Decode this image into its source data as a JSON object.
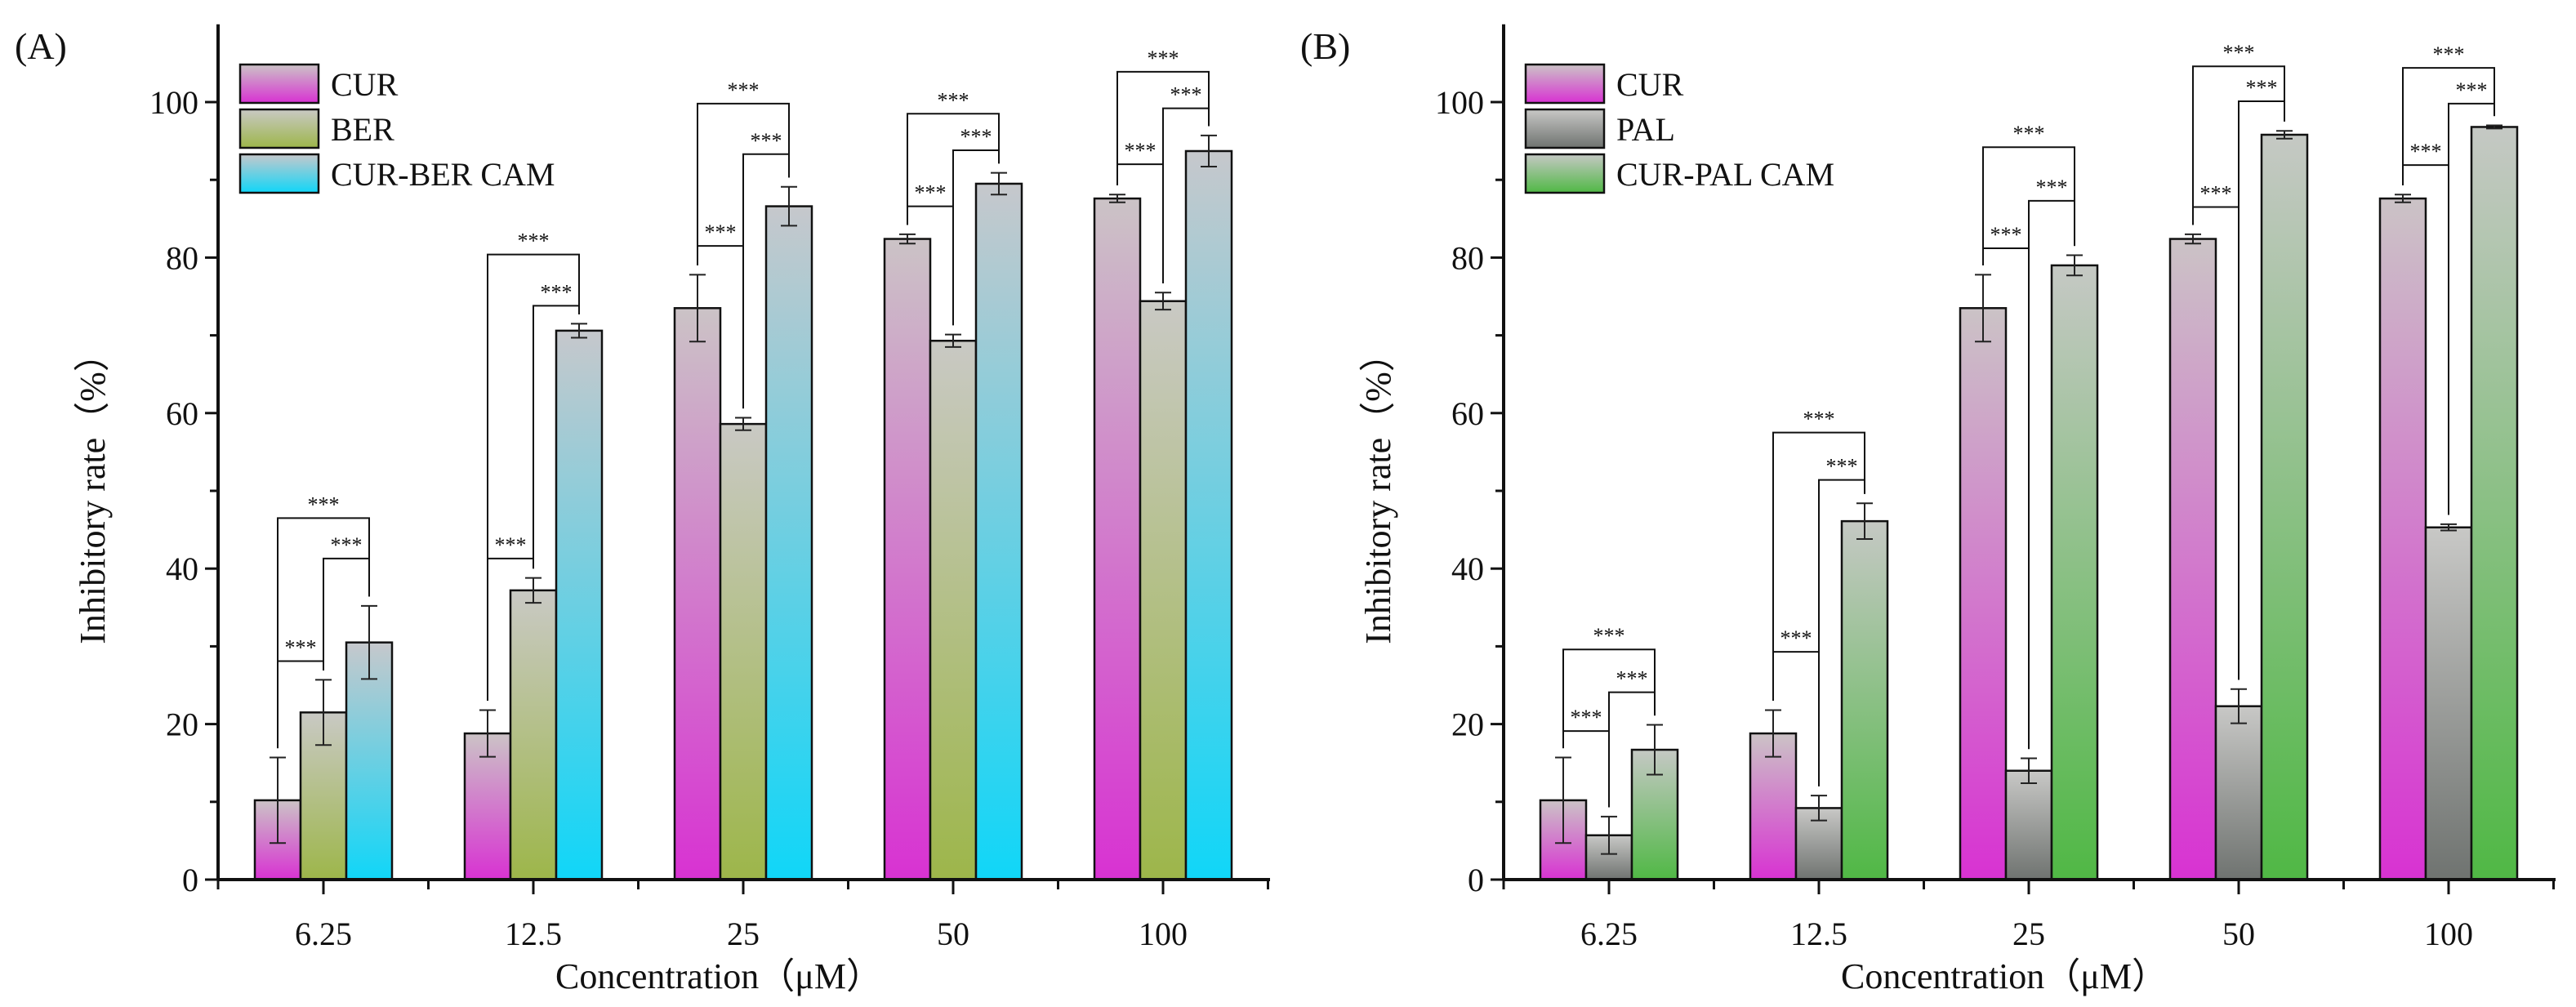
{
  "chart_data": [
    {
      "type": "bar",
      "panel_label": "(A)",
      "categories": [
        "6.25",
        "12.5",
        "25",
        "50",
        "100"
      ],
      "xlabel": "Concentration（μM）",
      "ylabel": "Inhibitory rate（%）",
      "ylim": [
        0,
        110
      ],
      "yticks": [
        "0",
        "20",
        "40",
        "60",
        "80",
        "100"
      ],
      "legend_position": "top-left",
      "series": [
        {
          "name": "CUR",
          "values": [
            10.2,
            18.8,
            73.5,
            82.4,
            87.6
          ],
          "errors": [
            5.5,
            3.0,
            4.3,
            0.6,
            0.5
          ],
          "color_top": "#cbc3c6",
          "color_bottom": "#d832d2"
        },
        {
          "name": "BER",
          "values": [
            21.5,
            37.2,
            58.6,
            69.3,
            74.4
          ],
          "errors": [
            4.2,
            1.6,
            0.8,
            0.8,
            1.1
          ],
          "color_top": "#c9c9c4",
          "color_bottom": "#9db64a"
        },
        {
          "name": "CUR-BER CAM",
          "values": [
            30.5,
            70.6,
            86.6,
            89.5,
            93.7
          ],
          "errors": [
            4.7,
            0.9,
            2.5,
            1.4,
            2.0
          ],
          "color_top": "#c6c8cc",
          "color_bottom": "#10d6f8"
        }
      ],
      "significance": {
        "label": "***",
        "levels": [
          [
            28.1,
            41.3,
            46.5
          ],
          [
            41.3,
            73.8,
            80.4
          ],
          [
            81.5,
            93.3,
            99.8
          ],
          [
            86.6,
            93.8,
            98.5
          ],
          [
            92.0,
            99.2,
            103.9
          ]
        ]
      }
    },
    {
      "type": "bar",
      "panel_label": "(B)",
      "categories": [
        "6.25",
        "12.5",
        "25",
        "50",
        "100"
      ],
      "xlabel": "Concentration（μM）",
      "ylabel": "Inhibitory rate（%）",
      "ylim": [
        0,
        110
      ],
      "yticks": [
        "0",
        "20",
        "40",
        "60",
        "80",
        "100"
      ],
      "legend_position": "top-left",
      "series": [
        {
          "name": "CUR",
          "values": [
            10.2,
            18.8,
            73.5,
            82.4,
            87.6
          ],
          "errors": [
            5.5,
            3.0,
            4.3,
            0.6,
            0.5
          ],
          "color_top": "#cbc3c6",
          "color_bottom": "#d832d2"
        },
        {
          "name": "PAL",
          "values": [
            5.7,
            9.2,
            14.0,
            22.3,
            45.3
          ],
          "errors": [
            2.4,
            1.6,
            1.6,
            2.2,
            0.4
          ],
          "color_top": "#c8c8c6",
          "color_bottom": "#6f7370"
        },
        {
          "name": "CUR-PAL CAM",
          "values": [
            16.7,
            46.1,
            79.0,
            95.8,
            96.8
          ],
          "errors": [
            3.2,
            2.3,
            1.3,
            0.5,
            0.2
          ],
          "color_top": "#c5c8c4",
          "color_bottom": "#50b845"
        }
      ],
      "significance": {
        "label": "***",
        "levels": [
          [
            19.1,
            24.1,
            29.6
          ],
          [
            29.3,
            51.4,
            57.5
          ],
          [
            81.2,
            87.3,
            94.2
          ],
          [
            86.5,
            100.1,
            104.6
          ],
          [
            91.9,
            99.8,
            104.4
          ]
        ]
      }
    }
  ]
}
